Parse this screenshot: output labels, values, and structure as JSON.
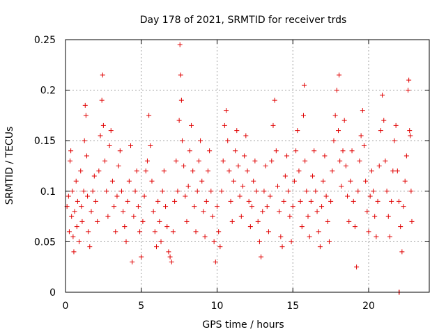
{
  "chart_data": {
    "type": "scatter",
    "title": "Day 178 of 2021, SRMTID for receiver trds",
    "xlabel": "GPS time / hours",
    "ylabel": "SRMTID / TECUs",
    "xlim": [
      0,
      24
    ],
    "ylim": [
      0,
      0.25
    ],
    "xticks": [
      0,
      5,
      10,
      15,
      20
    ],
    "yticks": [
      0,
      0.05,
      0.1,
      0.15,
      0.2,
      0.25
    ],
    "xtick_labels": [
      "0",
      "5",
      "10",
      "15",
      "20"
    ],
    "ytick_labels": [
      "0",
      "0.05",
      "0.1",
      "0.15",
      "0.2",
      "0.25"
    ],
    "grid": true,
    "marker": "plus",
    "series_color": "#e00000",
    "series": [
      {
        "name": "SRMTID",
        "points": [
          [
            0.1,
            0.085
          ],
          [
            0.2,
            0.095
          ],
          [
            0.25,
            0.06
          ],
          [
            0.3,
            0.13
          ],
          [
            0.35,
            0.14
          ],
          [
            0.4,
            0.075
          ],
          [
            0.45,
            0.1
          ],
          [
            0.5,
            0.055
          ],
          [
            0.55,
            0.04
          ],
          [
            0.6,
            0.08
          ],
          [
            0.7,
            0.11
          ],
          [
            0.75,
            0.065
          ],
          [
            0.8,
            0.09
          ],
          [
            0.9,
            0.05
          ],
          [
            1.0,
            0.12
          ],
          [
            1.05,
            0.085
          ],
          [
            1.1,
            0.07
          ],
          [
            1.2,
            0.1
          ],
          [
            1.25,
            0.15
          ],
          [
            1.3,
            0.185
          ],
          [
            1.35,
            0.175
          ],
          [
            1.4,
            0.135
          ],
          [
            1.45,
            0.095
          ],
          [
            1.5,
            0.06
          ],
          [
            1.6,
            0.045
          ],
          [
            1.7,
            0.08
          ],
          [
            1.8,
            0.1
          ],
          [
            1.9,
            0.115
          ],
          [
            2.0,
            0.09
          ],
          [
            2.1,
            0.07
          ],
          [
            2.2,
            0.12
          ],
          [
            2.3,
            0.155
          ],
          [
            2.4,
            0.19
          ],
          [
            2.45,
            0.215
          ],
          [
            2.5,
            0.165
          ],
          [
            2.6,
            0.13
          ],
          [
            2.7,
            0.1
          ],
          [
            2.8,
            0.075
          ],
          [
            2.9,
            0.145
          ],
          [
            3.0,
            0.16
          ],
          [
            3.1,
            0.11
          ],
          [
            3.2,
            0.085
          ],
          [
            3.3,
            0.06
          ],
          [
            3.4,
            0.095
          ],
          [
            3.5,
            0.125
          ],
          [
            3.6,
            0.14
          ],
          [
            3.7,
            0.1
          ],
          [
            3.8,
            0.08
          ],
          [
            3.9,
            0.065
          ],
          [
            4.0,
            0.05
          ],
          [
            4.1,
            0.09
          ],
          [
            4.2,
            0.11
          ],
          [
            4.3,
            0.145
          ],
          [
            4.4,
            0.03
          ],
          [
            4.5,
            0.075
          ],
          [
            4.6,
            0.1
          ],
          [
            4.7,
            0.12
          ],
          [
            4.8,
            0.085
          ],
          [
            4.9,
            0.06
          ],
          [
            5.0,
            0.035
          ],
          [
            5.1,
            0.07
          ],
          [
            5.2,
            0.095
          ],
          [
            5.3,
            0.12
          ],
          [
            5.4,
            0.13
          ],
          [
            5.5,
            0.175
          ],
          [
            5.6,
            0.145
          ],
          [
            5.7,
            0.11
          ],
          [
            5.8,
            0.08
          ],
          [
            5.9,
            0.06
          ],
          [
            6.0,
            0.045
          ],
          [
            6.1,
            0.09
          ],
          [
            6.2,
            0.07
          ],
          [
            6.3,
            0.05
          ],
          [
            6.4,
            0.1
          ],
          [
            6.5,
            0.12
          ],
          [
            6.6,
            0.085
          ],
          [
            6.7,
            0.065
          ],
          [
            6.8,
            0.04
          ],
          [
            6.9,
            0.035
          ],
          [
            7.0,
            0.03
          ],
          [
            7.1,
            0.06
          ],
          [
            7.2,
            0.09
          ],
          [
            7.3,
            0.13
          ],
          [
            7.4,
            0.1
          ],
          [
            7.5,
            0.17
          ],
          [
            7.55,
            0.245
          ],
          [
            7.6,
            0.215
          ],
          [
            7.65,
            0.19
          ],
          [
            7.7,
            0.15
          ],
          [
            7.8,
            0.125
          ],
          [
            7.9,
            0.095
          ],
          [
            8.0,
            0.07
          ],
          [
            8.1,
            0.105
          ],
          [
            8.2,
            0.14
          ],
          [
            8.3,
            0.165
          ],
          [
            8.4,
            0.12
          ],
          [
            8.5,
            0.085
          ],
          [
            8.6,
            0.06
          ],
          [
            8.7,
            0.1
          ],
          [
            8.8,
            0.13
          ],
          [
            8.9,
            0.15
          ],
          [
            9.0,
            0.11
          ],
          [
            9.1,
            0.08
          ],
          [
            9.2,
            0.055
          ],
          [
            9.3,
            0.09
          ],
          [
            9.4,
            0.12
          ],
          [
            9.5,
            0.14
          ],
          [
            9.6,
            0.1
          ],
          [
            9.7,
            0.075
          ],
          [
            9.8,
            0.05
          ],
          [
            9.9,
            0.03
          ],
          [
            10.0,
            0.085
          ],
          [
            10.1,
            0.06
          ],
          [
            10.2,
            0.045
          ],
          [
            10.3,
            0.1
          ],
          [
            10.4,
            0.13
          ],
          [
            10.5,
            0.165
          ],
          [
            10.6,
            0.18
          ],
          [
            10.7,
            0.15
          ],
          [
            10.8,
            0.12
          ],
          [
            10.9,
            0.09
          ],
          [
            11.0,
            0.07
          ],
          [
            11.1,
            0.11
          ],
          [
            11.2,
            0.14
          ],
          [
            11.3,
            0.16
          ],
          [
            11.4,
            0.125
          ],
          [
            11.5,
            0.095
          ],
          [
            11.6,
            0.075
          ],
          [
            11.7,
            0.105
          ],
          [
            11.8,
            0.135
          ],
          [
            11.9,
            0.155
          ],
          [
            12.0,
            0.12
          ],
          [
            12.1,
            0.09
          ],
          [
            12.2,
            0.065
          ],
          [
            12.3,
            0.085
          ],
          [
            12.4,
            0.11
          ],
          [
            12.5,
            0.13
          ],
          [
            12.6,
            0.1
          ],
          [
            12.7,
            0.07
          ],
          [
            12.8,
            0.05
          ],
          [
            12.9,
            0.035
          ],
          [
            13.0,
            0.08
          ],
          [
            13.1,
            0.1
          ],
          [
            13.2,
            0.125
          ],
          [
            13.3,
            0.085
          ],
          [
            13.4,
            0.06
          ],
          [
            13.5,
            0.095
          ],
          [
            13.6,
            0.13
          ],
          [
            13.7,
            0.165
          ],
          [
            13.8,
            0.19
          ],
          [
            13.9,
            0.14
          ],
          [
            14.0,
            0.105
          ],
          [
            14.1,
            0.08
          ],
          [
            14.2,
            0.055
          ],
          [
            14.3,
            0.045
          ],
          [
            14.4,
            0.09
          ],
          [
            14.5,
            0.115
          ],
          [
            14.6,
            0.135
          ],
          [
            14.7,
            0.1
          ],
          [
            14.8,
            0.075
          ],
          [
            14.9,
            0.05
          ],
          [
            15.0,
            0.085
          ],
          [
            15.1,
            0.11
          ],
          [
            15.2,
            0.14
          ],
          [
            15.3,
            0.16
          ],
          [
            15.4,
            0.12
          ],
          [
            15.5,
            0.09
          ],
          [
            15.6,
            0.065
          ],
          [
            15.7,
            0.175
          ],
          [
            15.75,
            0.205
          ],
          [
            15.8,
            0.13
          ],
          [
            15.9,
            0.1
          ],
          [
            16.0,
            0.075
          ],
          [
            16.1,
            0.055
          ],
          [
            16.2,
            0.09
          ],
          [
            16.3,
            0.115
          ],
          [
            16.4,
            0.14
          ],
          [
            16.5,
            0.1
          ],
          [
            16.6,
            0.08
          ],
          [
            16.7,
            0.06
          ],
          [
            16.8,
            0.045
          ],
          [
            16.9,
            0.085
          ],
          [
            17.0,
            0.11
          ],
          [
            17.1,
            0.135
          ],
          [
            17.2,
            0.095
          ],
          [
            17.3,
            0.07
          ],
          [
            17.4,
            0.05
          ],
          [
            17.5,
            0.09
          ],
          [
            17.6,
            0.12
          ],
          [
            17.7,
            0.15
          ],
          [
            17.8,
            0.175
          ],
          [
            17.9,
            0.2
          ],
          [
            18.0,
            0.16
          ],
          [
            18.05,
            0.215
          ],
          [
            18.1,
            0.13
          ],
          [
            18.2,
            0.105
          ],
          [
            18.3,
            0.14
          ],
          [
            18.4,
            0.17
          ],
          [
            18.5,
            0.125
          ],
          [
            18.6,
            0.095
          ],
          [
            18.7,
            0.07
          ],
          [
            18.8,
            0.11
          ],
          [
            18.9,
            0.14
          ],
          [
            19.0,
            0.09
          ],
          [
            19.1,
            0.065
          ],
          [
            19.2,
            0.025
          ],
          [
            19.3,
            0.1
          ],
          [
            19.4,
            0.13
          ],
          [
            19.5,
            0.155
          ],
          [
            19.6,
            0.18
          ],
          [
            19.7,
            0.145
          ],
          [
            19.8,
            0.11
          ],
          [
            19.9,
            0.08
          ],
          [
            20.0,
            0.06
          ],
          [
            20.1,
            0.095
          ],
          [
            20.2,
            0.12
          ],
          [
            20.3,
            0.1
          ],
          [
            20.4,
            0.075
          ],
          [
            20.5,
            0.055
          ],
          [
            20.6,
            0.09
          ],
          [
            20.7,
            0.125
          ],
          [
            20.8,
            0.16
          ],
          [
            20.9,
            0.195
          ],
          [
            21.0,
            0.17
          ],
          [
            21.1,
            0.13
          ],
          [
            21.2,
            0.1
          ],
          [
            21.3,
            0.075
          ],
          [
            21.4,
            0.055
          ],
          [
            21.5,
            0.09
          ],
          [
            21.6,
            0.12
          ],
          [
            21.7,
            0.15
          ],
          [
            21.8,
            0.165
          ],
          [
            21.9,
            0.12
          ],
          [
            22.0,
            0.09
          ],
          [
            22.1,
            0.065
          ],
          [
            22.2,
            0.04
          ],
          [
            22.3,
            0.085
          ],
          [
            22.4,
            0.11
          ],
          [
            22.5,
            0.135
          ],
          [
            22.6,
            0.2
          ],
          [
            22.65,
            0.21
          ],
          [
            22.7,
            0.16
          ],
          [
            22.75,
            0.155
          ],
          [
            22.8,
            0.1
          ],
          [
            22.85,
            0.07
          ],
          [
            22.0,
            0.0
          ],
          [
            22.02,
            0.0
          ]
        ]
      }
    ]
  }
}
